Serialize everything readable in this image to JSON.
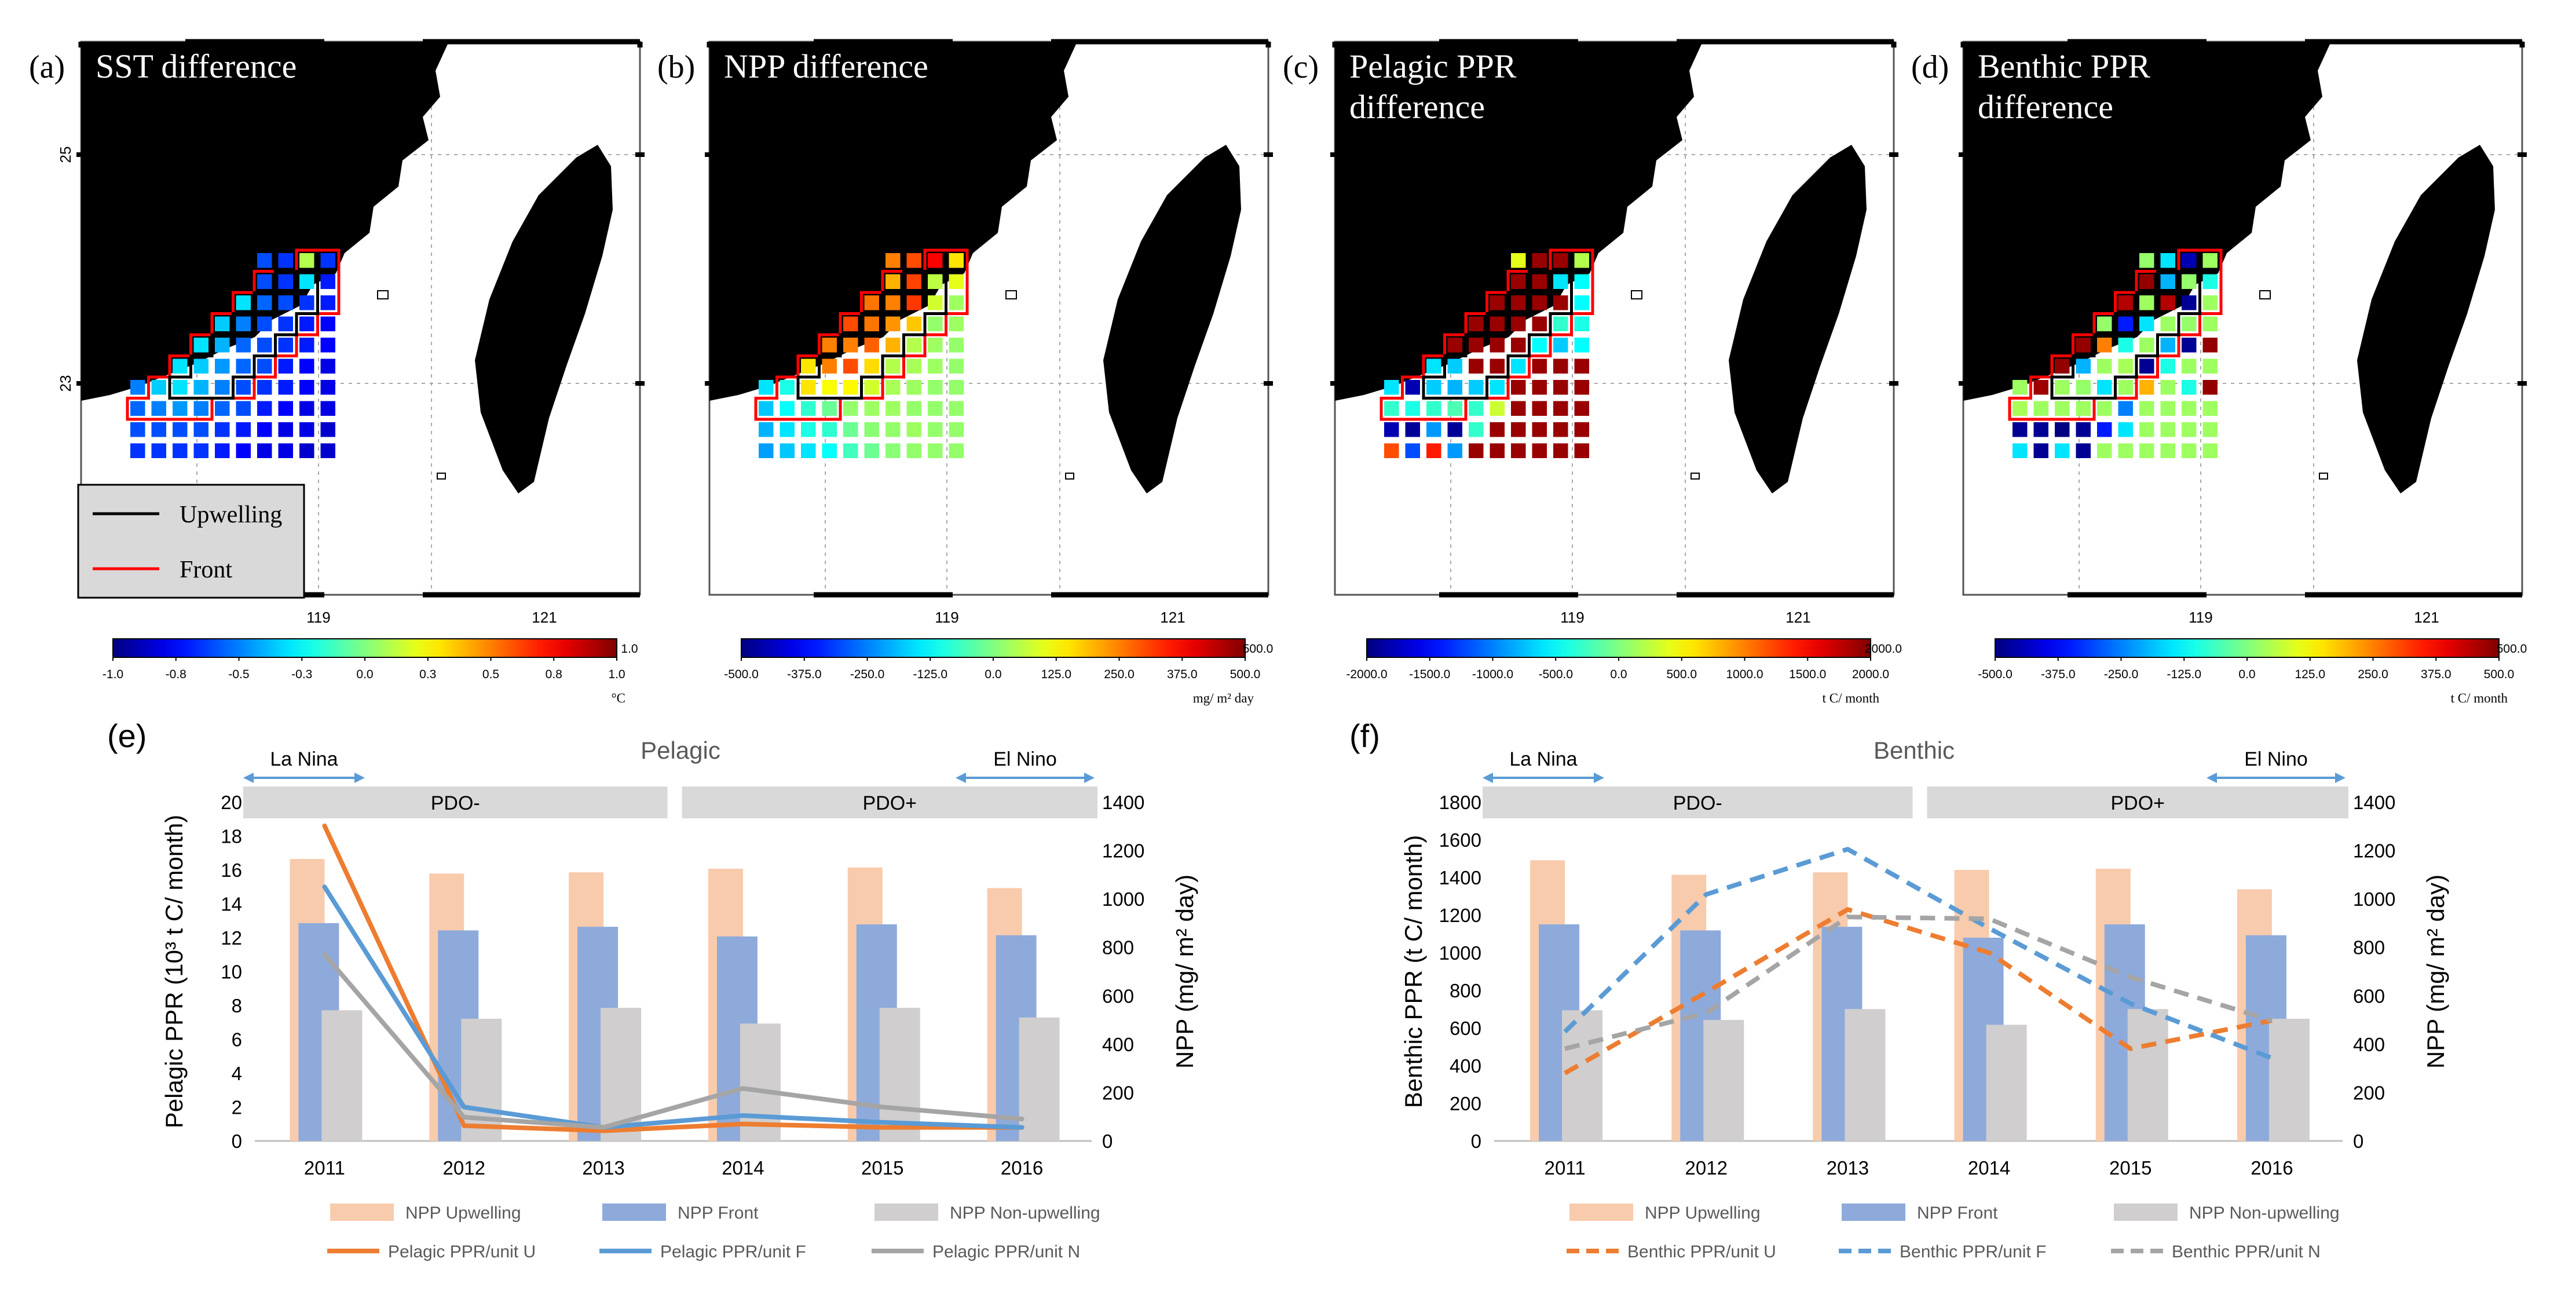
{
  "figure": {
    "background": "#ffffff"
  },
  "colors": {
    "upwelling_bar": "#f8cbad",
    "front_bar": "#8eaadb",
    "nonupwelling_bar": "#d0cece",
    "pelagic_u": "#ed7d31",
    "pelagic_f": "#5b9bd5",
    "pelagic_n": "#a5a5a5",
    "land": "#000000",
    "upwelling_outline": "#000000",
    "front_outline": "#ff0000",
    "enso_arrow": "#5b9bd5",
    "pdo_band": "#d9d9d9"
  },
  "maps": [
    {
      "letter": "(a)",
      "title_lines": [
        "SST difference"
      ],
      "lon_ticks": [
        "119",
        "121"
      ],
      "lat_ticks": [
        "25",
        "23"
      ],
      "colorbar": {
        "ticks": [
          "-1.0",
          "-0.8",
          "-0.5",
          "-0.3",
          "0.0",
          "0.3",
          "0.5",
          "0.8",
          "1.0"
        ],
        "end_label": "1.0",
        "unit": "°C",
        "range": [
          -1.0,
          1.0
        ]
      },
      "legend": {
        "upwelling": "Upwelling",
        "front": "Front"
      },
      "grid": [
        [
          null,
          null,
          null,
          null,
          null,
          null,
          -0.6,
          -0.65,
          0.1,
          -0.65
        ],
        [
          null,
          null,
          null,
          null,
          null,
          null,
          -0.6,
          -0.65,
          -0.3,
          -0.7
        ],
        [
          null,
          null,
          null,
          null,
          null,
          -0.3,
          -0.55,
          -0.6,
          -0.65,
          -0.7
        ],
        [
          null,
          null,
          null,
          null,
          -0.35,
          -0.5,
          -0.6,
          -0.65,
          -0.7,
          -0.75
        ],
        [
          null,
          null,
          null,
          -0.3,
          -0.4,
          -0.55,
          -0.6,
          -0.65,
          -0.7,
          -0.75
        ],
        [
          null,
          null,
          -0.3,
          -0.35,
          -0.45,
          -0.55,
          -0.6,
          -0.7,
          -0.75,
          -0.8
        ],
        [
          -0.5,
          -0.35,
          -0.3,
          -0.4,
          -0.5,
          -0.6,
          -0.65,
          -0.7,
          -0.75,
          -0.8
        ],
        [
          -0.55,
          -0.5,
          -0.45,
          -0.5,
          -0.55,
          -0.6,
          -0.7,
          -0.75,
          -0.8,
          -0.8
        ],
        [
          -0.6,
          -0.6,
          -0.6,
          -0.6,
          -0.65,
          -0.7,
          -0.75,
          -0.8,
          -0.8,
          -0.85
        ],
        [
          -0.65,
          -0.65,
          -0.65,
          -0.65,
          -0.7,
          -0.75,
          -0.8,
          -0.8,
          -0.85,
          -0.85
        ]
      ]
    },
    {
      "letter": "(b)",
      "title_lines": [
        "NPP difference"
      ],
      "lon_ticks": [
        "119",
        "121"
      ],
      "lat_ticks": [],
      "colorbar": {
        "ticks": [
          "-500.0",
          "-375.0",
          "-250.0",
          "-125.0",
          "0.0",
          "125.0",
          "250.0",
          "375.0",
          "500.0"
        ],
        "end_label": "500.0",
        "unit": "mg/ m² day",
        "range": [
          -500,
          500
        ]
      },
      "grid": [
        [
          null,
          null,
          null,
          null,
          null,
          null,
          250,
          300,
          380,
          150
        ],
        [
          null,
          null,
          null,
          null,
          null,
          null,
          200,
          310,
          60,
          100
        ],
        [
          null,
          null,
          null,
          null,
          null,
          260,
          250,
          320,
          80,
          30
        ],
        [
          null,
          null,
          null,
          null,
          300,
          260,
          230,
          180,
          20,
          30
        ],
        [
          null,
          null,
          null,
          250,
          250,
          280,
          200,
          50,
          30,
          20
        ],
        [
          null,
          null,
          150,
          250,
          300,
          160,
          50,
          40,
          30,
          20
        ],
        [
          -150,
          -100,
          150,
          120,
          130,
          80,
          40,
          30,
          20,
          20
        ],
        [
          -180,
          -120,
          -80,
          -20,
          20,
          30,
          30,
          20,
          20,
          20
        ],
        [
          -200,
          -150,
          -100,
          -80,
          -20,
          10,
          20,
          30,
          20,
          20
        ],
        [
          -220,
          -180,
          -150,
          -120,
          -60,
          -20,
          10,
          20,
          20,
          20
        ]
      ]
    },
    {
      "letter": "(c)",
      "title_lines": [
        "Pelagic PPR",
        "difference"
      ],
      "lon_ticks": [
        "119",
        "121"
      ],
      "lat_ticks": [],
      "colorbar": {
        "ticks": [
          "-2000.0",
          "-1500.0",
          "-1000.0",
          "-500.0",
          "0.0",
          "500.0",
          "1000.0",
          "1500.0",
          "2000.0"
        ],
        "end_label": "2000.0",
        "unit": "t C/ month",
        "range": [
          -2000,
          2000
        ]
      },
      "grid": [
        [
          null,
          null,
          null,
          null,
          null,
          null,
          400,
          1900,
          1900,
          200
        ],
        [
          null,
          null,
          null,
          null,
          null,
          null,
          1900,
          1900,
          -600,
          -500
        ],
        [
          null,
          null,
          null,
          null,
          null,
          1900,
          1900,
          1900,
          1900,
          -500
        ],
        [
          null,
          null,
          null,
          null,
          1900,
          1900,
          1900,
          1900,
          -300,
          -400
        ],
        [
          null,
          null,
          null,
          1900,
          1900,
          1900,
          1900,
          -500,
          -700,
          -500
        ],
        [
          null,
          null,
          -600,
          -700,
          1900,
          1900,
          -600,
          1900,
          1900,
          1900
        ],
        [
          -600,
          -1800,
          -700,
          -800,
          -700,
          -600,
          1900,
          1900,
          1900,
          1900
        ],
        [
          -300,
          -400,
          -300,
          -200,
          -300,
          300,
          1900,
          1900,
          1900,
          1900
        ],
        [
          -1800,
          -1900,
          -900,
          -1900,
          -300,
          1900,
          1900,
          1900,
          1900,
          1900
        ],
        [
          1200,
          -1200,
          1400,
          -900,
          1900,
          1900,
          1900,
          1900,
          1900,
          1900
        ]
      ]
    },
    {
      "letter": "(d)",
      "title_lines": [
        "Benthic PPR",
        "difference"
      ],
      "lon_ticks": [
        "119",
        "121"
      ],
      "lat_ticks": [],
      "colorbar": {
        "ticks": [
          "-500.0",
          "-375.0",
          "-250.0",
          "-125.0",
          "0.0",
          "125.0",
          "250.0",
          "375.0",
          "500.0"
        ],
        "end_label": "500.0",
        "unit": "t C/ month",
        "range": [
          -500,
          500
        ]
      },
      "grid": [
        [
          null,
          null,
          null,
          null,
          null,
          null,
          20,
          -150,
          -450,
          30
        ],
        [
          null,
          null,
          null,
          null,
          null,
          null,
          480,
          -200,
          20,
          -100
        ],
        [
          null,
          null,
          null,
          null,
          null,
          450,
          30,
          450,
          -480,
          30
        ],
        [
          null,
          null,
          null,
          null,
          20,
          -350,
          -150,
          30,
          20,
          30
        ],
        [
          null,
          null,
          null,
          480,
          250,
          -100,
          30,
          -200,
          -480,
          480
        ],
        [
          null,
          null,
          480,
          -200,
          30,
          40,
          -480,
          -100,
          30,
          30
        ],
        [
          30,
          470,
          30,
          20,
          -150,
          30,
          200,
          30,
          -100,
          480
        ],
        [
          40,
          30,
          30,
          30,
          30,
          -250,
          30,
          30,
          30,
          30
        ],
        [
          -480,
          -480,
          -500,
          -480,
          -350,
          -150,
          30,
          30,
          30,
          30
        ],
        [
          -150,
          -480,
          -150,
          -480,
          30,
          30,
          30,
          30,
          30,
          30
        ]
      ]
    }
  ],
  "chart_data": [
    {
      "type": "bar+line",
      "panel": "(e)",
      "title": "Pelagic",
      "categories": [
        "2011",
        "2012",
        "2013",
        "2014",
        "2015",
        "2016"
      ],
      "ylabel_left": "Pelagic PPR (10³ t C/ month)",
      "ylabel_right": "NPP (mg/ m² day)",
      "ylim_left": [
        0,
        20
      ],
      "ylim_right": [
        0,
        1400
      ],
      "yticks_left": [
        "0",
        "2",
        "4",
        "6",
        "8",
        "10",
        "12",
        "14",
        "16",
        "18",
        "20"
      ],
      "yticks_right": [
        "0",
        "200",
        "400",
        "600",
        "800",
        "1000",
        "1200",
        "1400"
      ],
      "annotations": {
        "la_nina": "La Nina",
        "el_nino": "El Nino",
        "pdo_neg": "PDO-",
        "pdo_pos": "PDO+"
      },
      "bar_series": [
        {
          "name": "NPP Upwelling",
          "values": [
            1165,
            1105,
            1110,
            1125,
            1130,
            1045
          ]
        },
        {
          "name": "NPP Front",
          "values": [
            900,
            870,
            885,
            845,
            895,
            850
          ]
        },
        {
          "name": "NPP Non-upwelling",
          "values": [
            540,
            505,
            550,
            485,
            550,
            510
          ]
        }
      ],
      "line_series": [
        {
          "name": "Pelagic PPR/unit U",
          "values": [
            18.6,
            0.9,
            0.6,
            1.0,
            0.8,
            0.8
          ]
        },
        {
          "name": "Pelagic PPR/unit F",
          "values": [
            15.0,
            2.0,
            0.8,
            1.5,
            1.1,
            0.8
          ]
        },
        {
          "name": "Pelagic PPR/unit N",
          "values": [
            11.0,
            1.4,
            0.8,
            3.1,
            2.0,
            1.3
          ]
        }
      ],
      "line_style": "solid"
    },
    {
      "type": "bar+line",
      "panel": "(f)",
      "title": "Benthic",
      "categories": [
        "2011",
        "2012",
        "2013",
        "2014",
        "2015",
        "2016"
      ],
      "ylabel_left": "Benthic PPR (t C/ month)",
      "ylabel_right": "NPP (mg/ m² day)",
      "ylim_left": [
        0,
        1800
      ],
      "ylim_right": [
        0,
        1400
      ],
      "yticks_left": [
        "0",
        "200",
        "400",
        "600",
        "800",
        "1000",
        "1200",
        "1400",
        "1600",
        "1800"
      ],
      "yticks_right": [
        "0",
        "200",
        "400",
        "600",
        "800",
        "1000",
        "1200",
        "1400"
      ],
      "annotations": {
        "la_nina": "La Nina",
        "el_nino": "El Nino",
        "pdo_neg": "PDO-",
        "pdo_pos": "PDO+"
      },
      "bar_series": [
        {
          "name": "NPP Upwelling",
          "values": [
            1160,
            1100,
            1110,
            1120,
            1125,
            1040
          ]
        },
        {
          "name": "NPP Front",
          "values": [
            895,
            870,
            885,
            840,
            895,
            850
          ]
        },
        {
          "name": "NPP Non-upwelling",
          "values": [
            540,
            500,
            545,
            480,
            545,
            505
          ]
        }
      ],
      "line_series": [
        {
          "name": "Benthic PPR/unit U",
          "values": [
            360,
            790,
            1230,
            1000,
            490,
            640
          ]
        },
        {
          "name": "Benthic PPR/unit F",
          "values": [
            580,
            1310,
            1550,
            1130,
            730,
            440
          ]
        },
        {
          "name": "Benthic PPR/unit N",
          "values": [
            490,
            680,
            1190,
            1180,
            870,
            640
          ]
        }
      ],
      "line_style": "dashed"
    }
  ]
}
